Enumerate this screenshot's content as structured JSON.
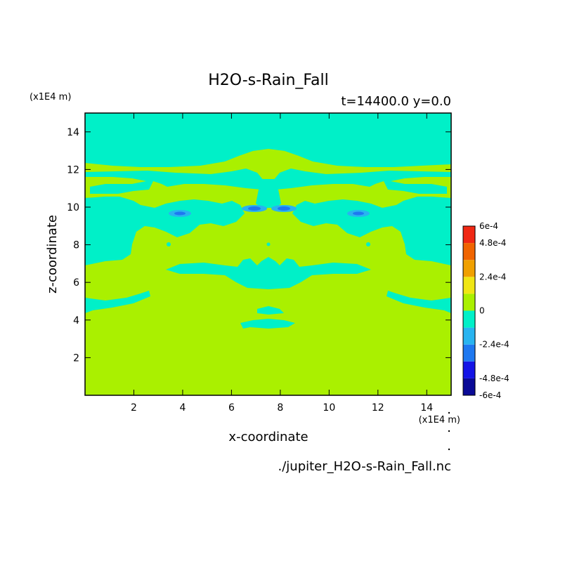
{
  "chart_data": {
    "type": "heatmap",
    "title": "H2O-s-Rain_Fall",
    "subtitle": "t=14400.0 y=0.0",
    "xlabel": "x-coordinate",
    "ylabel": "z-coordinate",
    "x_unit_label": "(x1E4 m)",
    "y_unit_label": "(x1E4 m)",
    "source_label": "./jupiter_H2O-s-Rain_Fall.nc",
    "xlim": [
      0,
      15
    ],
    "ylim": [
      0,
      15
    ],
    "x_ticks": [
      2,
      4,
      6,
      8,
      10,
      12,
      14
    ],
    "y_ticks": [
      2,
      4,
      6,
      8,
      10,
      12,
      14
    ],
    "grid": false,
    "colorbar": {
      "placement": "right",
      "tick_labels": [
        "6e-4",
        "4.8e-4",
        "2.4e-4",
        "0",
        "-2.4e-4",
        "-4.8e-4",
        "-6e-4"
      ],
      "tick_values": [
        0.0006,
        0.00048,
        0.00024,
        0,
        -0.00024,
        -0.00048,
        -0.0006
      ],
      "levels": [
        -0.0006,
        -0.00048,
        -0.00036,
        -0.00024,
        -0.00012,
        0,
        0.00012,
        0.00024,
        0.00036,
        0.00048,
        0.0006
      ],
      "colors": [
        "#0a0a96",
        "#1414e6",
        "#1e78f0",
        "#28b4f0",
        "#00f0c8",
        "#aaf000",
        "#f0e614",
        "#f0a000",
        "#f06400",
        "#f02814"
      ]
    },
    "field_description_levels": {
      "background_positive_small": "#aaf000",
      "negative_small": "#00f0c8",
      "negative_medium": "#28b4f0",
      "negative_large": "#1e78f0"
    }
  }
}
